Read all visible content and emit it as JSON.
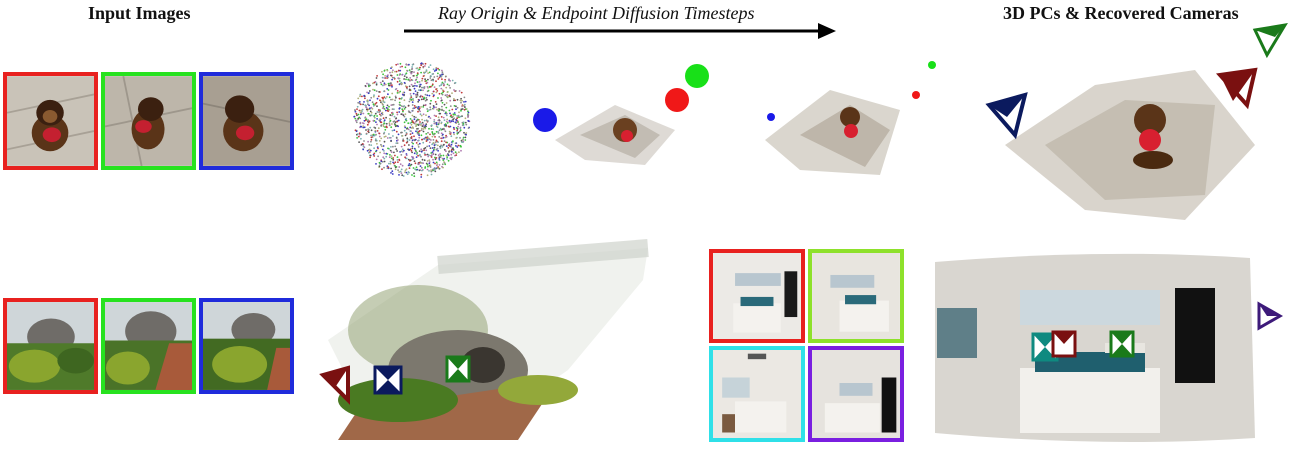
{
  "headers": {
    "input_images": "Input Images",
    "timesteps": "Ray Origin & Endpoint Diffusion Timesteps",
    "recovered": "3D PCs & Recovered Cameras"
  },
  "colors": {
    "frame_red": "#e8211f",
    "frame_green": "#27e21f",
    "frame_blue": "#1f2bdb",
    "frame_cyan": "#2fe0e8",
    "frame_purple": "#7a1fe0",
    "frame_lime": "#8ee12b",
    "cam_navy": "#0b1a5e",
    "cam_maroon": "#7a1010",
    "cam_green": "#1a7a1a",
    "cam_teal": "#0f8a80",
    "cam_purple": "#3d1a7a"
  },
  "icons": [
    "arrow-right-icon",
    "camera-frustum-icon"
  ]
}
